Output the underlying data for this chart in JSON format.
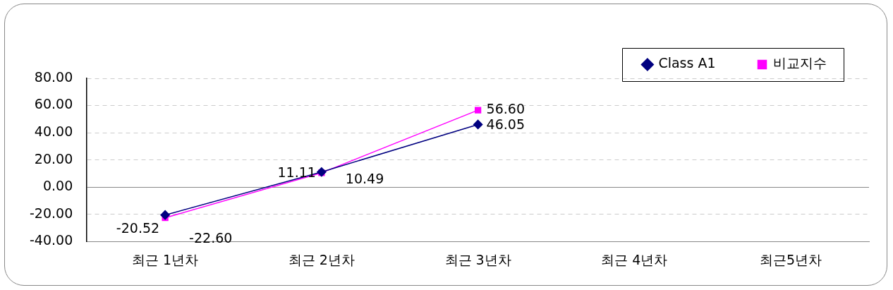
{
  "chart_data": {
    "type": "line",
    "categories": [
      "최근 1년차",
      "최근 2년차",
      "최근 3년차",
      "최근 4년차",
      "최근5년차"
    ],
    "series": [
      {
        "name": "Class A1",
        "color": "#000080",
        "marker": "diamond",
        "values": [
          -20.52,
          11.11,
          46.05,
          null,
          null
        ],
        "value_labels": [
          "-20.52",
          "11.11",
          "46.05",
          null,
          null
        ]
      },
      {
        "name": "비교지수",
        "color": "#ff00ff",
        "marker": "square",
        "values": [
          -22.6,
          10.49,
          56.6,
          null,
          null
        ],
        "value_labels": [
          "-22.60",
          "10.49",
          "56.60",
          null,
          null
        ]
      }
    ],
    "ylim": [
      -40,
      80
    ],
    "yticks": [
      {
        "value": -40,
        "label": "-40.00"
      },
      {
        "value": -20,
        "label": "-20.00"
      },
      {
        "value": 0,
        "label": "0.00"
      },
      {
        "value": 20,
        "label": "20.00"
      },
      {
        "value": 40,
        "label": "40.00"
      },
      {
        "value": 60,
        "label": "60.00"
      },
      {
        "value": 80,
        "label": "80.00"
      }
    ],
    "grid": "y",
    "legend": "top right",
    "line_style": "solid"
  }
}
